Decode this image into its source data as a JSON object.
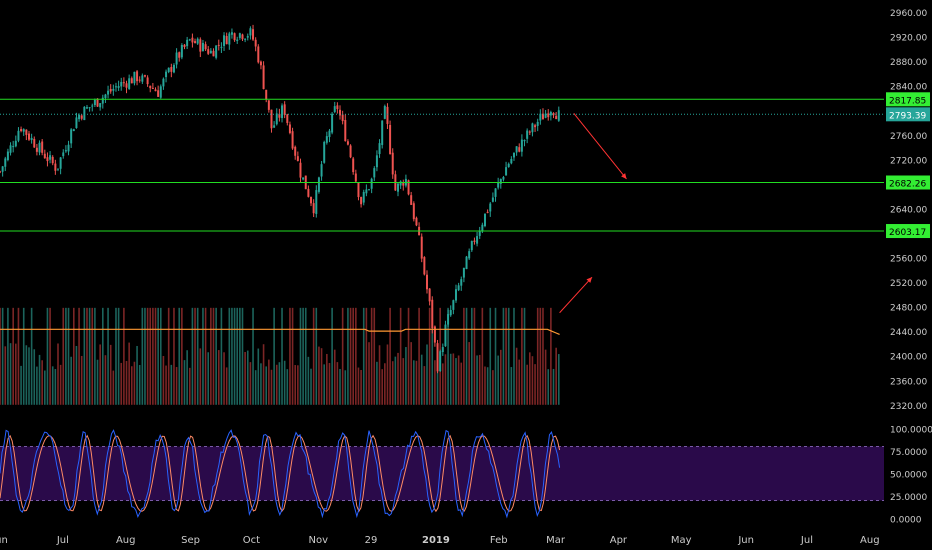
{
  "chart_data": {
    "type": "candlestick",
    "colors": {
      "up": "#26a69a",
      "down": "#ef5350",
      "level_line": "#22dd22",
      "level_badge": "#33ee33",
      "current_badge": "#26a69a",
      "oscillator_k": "#2962ff",
      "oscillator_d": "#ff8a65",
      "oscillator_band_fill": "#2a0a4a",
      "arrow": "#ff3333",
      "volume_ma": "#ff9933"
    },
    "price_axis": {
      "range": [
        2305,
        2965
      ],
      "ticks": [
        "2960.00",
        "2920.00",
        "2880.00",
        "2840.00",
        "2800.00",
        "2760.00",
        "2720.00",
        "2680.00",
        "2640.00",
        "2600.00",
        "2560.00",
        "2520.00",
        "2480.00",
        "2440.00",
        "2400.00",
        "2360.00",
        "2320.00"
      ]
    },
    "time_axis": {
      "range": [
        0,
        436
      ],
      "labels": [
        {
          "text": "Jun",
          "day": 0
        },
        {
          "text": "Jul",
          "day": 31
        },
        {
          "text": "Aug",
          "day": 62
        },
        {
          "text": "Sep",
          "day": 94
        },
        {
          "text": "Oct",
          "day": 124
        },
        {
          "text": "Nov",
          "day": 157
        },
        {
          "text": "29",
          "day": 183
        },
        {
          "text": "2019",
          "day": 215
        },
        {
          "text": "Feb",
          "day": 246
        },
        {
          "text": "Mar",
          "day": 274
        },
        {
          "text": "Apr",
          "day": 305
        },
        {
          "text": "May",
          "day": 336
        },
        {
          "text": "Jun",
          "day": 368
        },
        {
          "text": "Jul",
          "day": 398
        },
        {
          "text": "Aug",
          "day": 429
        }
      ]
    },
    "levels": [
      {
        "price": 2817.85,
        "label": "2817.85",
        "style": "solid"
      },
      {
        "price": 2682.26,
        "label": "2682.26",
        "style": "solid"
      },
      {
        "price": 2603.17,
        "label": "2603.17",
        "style": "solid"
      }
    ],
    "current_price": {
      "price": 2793.39,
      "label": "2793.39"
    },
    "price_path": [
      {
        "day": 0,
        "price": 2700
      },
      {
        "day": 10,
        "price": 2775
      },
      {
        "day": 20,
        "price": 2735
      },
      {
        "day": 28,
        "price": 2705
      },
      {
        "day": 38,
        "price": 2790
      },
      {
        "day": 48,
        "price": 2815
      },
      {
        "day": 58,
        "price": 2840
      },
      {
        "day": 68,
        "price": 2855
      },
      {
        "day": 78,
        "price": 2830
      },
      {
        "day": 86,
        "price": 2880
      },
      {
        "day": 94,
        "price": 2915
      },
      {
        "day": 104,
        "price": 2895
      },
      {
        "day": 114,
        "price": 2925
      },
      {
        "day": 124,
        "price": 2925
      },
      {
        "day": 128,
        "price": 2880
      },
      {
        "day": 134,
        "price": 2770
      },
      {
        "day": 140,
        "price": 2805
      },
      {
        "day": 148,
        "price": 2700
      },
      {
        "day": 155,
        "price": 2640
      },
      {
        "day": 160,
        "price": 2740
      },
      {
        "day": 166,
        "price": 2810
      },
      {
        "day": 172,
        "price": 2740
      },
      {
        "day": 178,
        "price": 2650
      },
      {
        "day": 184,
        "price": 2690
      },
      {
        "day": 190,
        "price": 2800
      },
      {
        "day": 195,
        "price": 2670
      },
      {
        "day": 200,
        "price": 2690
      },
      {
        "day": 206,
        "price": 2600
      },
      {
        "day": 212,
        "price": 2480
      },
      {
        "day": 216,
        "price": 2380
      },
      {
        "day": 220,
        "price": 2450
      },
      {
        "day": 226,
        "price": 2510
      },
      {
        "day": 234,
        "price": 2590
      },
      {
        "day": 242,
        "price": 2650
      },
      {
        "day": 250,
        "price": 2710
      },
      {
        "day": 258,
        "price": 2750
      },
      {
        "day": 266,
        "price": 2785
      },
      {
        "day": 272,
        "price": 2805
      },
      {
        "day": 276,
        "price": 2790
      }
    ],
    "arrows": [
      {
        "from": {
          "day": 283,
          "price": 2795
        },
        "to": {
          "day": 309,
          "price": 2688
        }
      },
      {
        "from": {
          "day": 276,
          "price": 2470
        },
        "to": {
          "day": 292,
          "price": 2528
        }
      }
    ],
    "volume": {
      "bottom_price": 2320,
      "top_price": 2478,
      "ma_price": 2443
    },
    "oscillator": {
      "type": "stochastic",
      "range": [
        -5,
        105
      ],
      "ticks": [
        "100.0000",
        "75.0000",
        "50.0000",
        "25.0000",
        "0.0000"
      ],
      "band": [
        20,
        80
      ],
      "cycle_days": 18
    }
  }
}
